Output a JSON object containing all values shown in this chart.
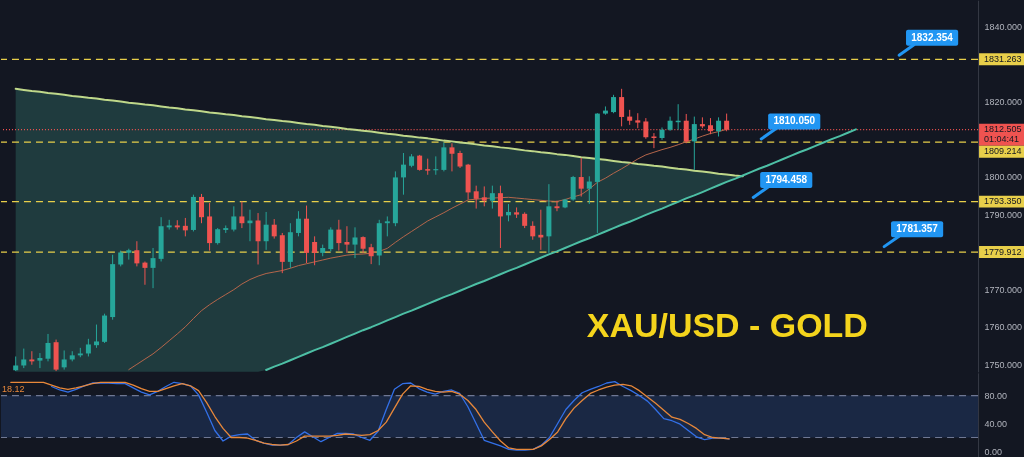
{
  "chart_data": [
    {
      "type": "candlestick",
      "title": "XAU/USD - GOLD",
      "categories": [
        null,
        null,
        null,
        null,
        null,
        null,
        null,
        null,
        null,
        null,
        null,
        null,
        null,
        null,
        null,
        null,
        null,
        null,
        null,
        null,
        null,
        null,
        null,
        null,
        null,
        null,
        null,
        null,
        null,
        null,
        null,
        null,
        null,
        null,
        null,
        null,
        null,
        null,
        null,
        null,
        null,
        null,
        null,
        null,
        null,
        null,
        null,
        null,
        null,
        null,
        null,
        null,
        null,
        null,
        null,
        null,
        null,
        null,
        null,
        null,
        null,
        null,
        null,
        null,
        null,
        null,
        null,
        null,
        null,
        null,
        null,
        null,
        null,
        null,
        null,
        null,
        null,
        null,
        null,
        null,
        null,
        null,
        null,
        null,
        null,
        null,
        null,
        null,
        null,
        null,
        null,
        null,
        null,
        null,
        null,
        null,
        null,
        null,
        null,
        null,
        null,
        null,
        null,
        null,
        null,
        null,
        null,
        null,
        null,
        null,
        null,
        null,
        null,
        null,
        null,
        null,
        null,
        null,
        null
      ],
      "ohlc": [
        [
          1748.4,
          1752.1,
          1748.2,
          1749.7
        ],
        [
          1749.7,
          1754.2,
          1749.0,
          1751.3
        ],
        [
          1751.3,
          1753.5,
          1749.9,
          1750.8
        ],
        [
          1751.0,
          1753.0,
          1749.0,
          1751.7
        ],
        [
          1751.5,
          1758.1,
          1750.8,
          1755.7
        ],
        [
          1755.9,
          1756.6,
          1748.2,
          1748.6
        ],
        [
          1749.2,
          1753.7,
          1748.6,
          1751.3
        ],
        [
          1751.3,
          1753.5,
          1750.8,
          1752.4
        ],
        [
          1752.4,
          1754.4,
          1751.9,
          1752.9
        ],
        [
          1752.9,
          1756.8,
          1752.1,
          1755.3
        ],
        [
          1755.1,
          1760.6,
          1754.4,
          1756.1
        ],
        [
          1756.0,
          1763.5,
          1755.7,
          1763.0
        ],
        [
          1762.6,
          1779.2,
          1761.9,
          1776.7
        ],
        [
          1776.6,
          1780.3,
          1776.1,
          1779.8
        ],
        [
          1779.7,
          1780.8,
          1777.9,
          1780.4
        ],
        [
          1780.4,
          1782.8,
          1776.1,
          1776.9
        ],
        [
          1777.1,
          1777.4,
          1771.2,
          1775.7
        ],
        [
          1775.7,
          1781.0,
          1770.3,
          1778.3
        ],
        [
          1778.1,
          1789.2,
          1777.4,
          1786.8
        ],
        [
          1786.5,
          1788.5,
          1785.9,
          1787.0
        ],
        [
          1787.0,
          1788.4,
          1785.9,
          1786.5
        ],
        [
          1786.9,
          1789.0,
          1784.1,
          1785.7
        ],
        [
          1785.8,
          1795.2,
          1785.4,
          1794.6
        ],
        [
          1794.6,
          1795.4,
          1787.6,
          1789.2
        ],
        [
          1789.4,
          1793.0,
          1780.3,
          1782.3
        ],
        [
          1782.3,
          1786.3,
          1781.9,
          1786.0
        ],
        [
          1785.8,
          1787.0,
          1785.0,
          1786.3
        ],
        [
          1785.9,
          1792.1,
          1785.4,
          1789.4
        ],
        [
          1789.4,
          1793.4,
          1786.3,
          1787.6
        ],
        [
          1787.6,
          1791.2,
          1782.8,
          1788.3
        ],
        [
          1788.3,
          1790.3,
          1776.6,
          1782.8
        ],
        [
          1782.8,
          1790.6,
          1780.5,
          1787.2
        ],
        [
          1787.2,
          1788.7,
          1783.5,
          1784.1
        ],
        [
          1784.4,
          1785.0,
          1774.3,
          1777.3
        ],
        [
          1777.3,
          1787.6,
          1775.7,
          1785.2
        ],
        [
          1785.0,
          1790.8,
          1784.1,
          1788.8
        ],
        [
          1788.8,
          1792.3,
          1777.0,
          1779.7
        ],
        [
          1782.6,
          1784.1,
          1776.4,
          1779.7
        ],
        [
          1779.7,
          1781.9,
          1778.8,
          1781.0
        ],
        [
          1780.7,
          1786.5,
          1780.1,
          1785.9
        ],
        [
          1785.9,
          1788.5,
          1780.3,
          1782.3
        ],
        [
          1782.6,
          1786.8,
          1779.7,
          1781.9
        ],
        [
          1781.9,
          1786.5,
          1778.3,
          1783.8
        ],
        [
          1783.9,
          1784.1,
          1779.7,
          1780.8
        ],
        [
          1781.2,
          1782.1,
          1776.7,
          1778.8
        ],
        [
          1779.0,
          1788.5,
          1776.4,
          1787.6
        ],
        [
          1787.6,
          1789.4,
          1784.1,
          1788.1
        ],
        [
          1787.6,
          1801.4,
          1786.8,
          1799.8
        ],
        [
          1799.8,
          1806.3,
          1795.2,
          1803.2
        ],
        [
          1802.9,
          1806.0,
          1802.5,
          1805.4
        ],
        [
          1805.6,
          1805.8,
          1801.6,
          1801.8
        ],
        [
          1802.0,
          1804.8,
          1800.5,
          1801.6
        ],
        [
          1801.7,
          1805.4,
          1800.5,
          1802.0
        ],
        [
          1801.8,
          1809.1,
          1801.4,
          1807.8
        ],
        [
          1807.8,
          1808.9,
          1801.4,
          1806.1
        ],
        [
          1806.3,
          1806.9,
          1802.3,
          1802.7
        ],
        [
          1803.2,
          1803.4,
          1793.9,
          1795.8
        ],
        [
          1796.1,
          1797.6,
          1791.5,
          1794.1
        ],
        [
          1794.5,
          1797.4,
          1792.1,
          1793.6
        ],
        [
          1793.6,
          1797.6,
          1791.5,
          1795.6
        ],
        [
          1795.6,
          1797.6,
          1781.0,
          1789.4
        ],
        [
          1789.7,
          1792.7,
          1788.1,
          1790.6
        ],
        [
          1790.5,
          1791.8,
          1789.0,
          1789.9
        ],
        [
          1790.1,
          1790.5,
          1786.3,
          1786.9
        ],
        [
          1786.9,
          1788.1,
          1783.2,
          1784.1
        ],
        [
          1784.5,
          1791.2,
          1780.5,
          1783.8
        ],
        [
          1784.1,
          1798.0,
          1779.7,
          1792.1
        ],
        [
          1792.1,
          1793.6,
          1790.8,
          1791.6
        ],
        [
          1791.8,
          1794.1,
          1791.6,
          1793.9
        ],
        [
          1793.9,
          1800.2,
          1793.6,
          1799.9
        ],
        [
          1799.9,
          1805.0,
          1794.7,
          1796.8
        ],
        [
          1796.8,
          1800.1,
          1792.7,
          1798.7
        ],
        [
          1798.6,
          1816.9,
          1785.0,
          1816.8
        ],
        [
          1816.8,
          1818.7,
          1816.5,
          1817.6
        ],
        [
          1817.2,
          1821.8,
          1816.9,
          1821.2
        ],
        [
          1821.2,
          1823.4,
          1813.4,
          1815.9
        ],
        [
          1816.0,
          1817.8,
          1813.8,
          1814.9
        ],
        [
          1815.0,
          1816.9,
          1812.9,
          1814.4
        ],
        [
          1814.7,
          1815.6,
          1810.1,
          1810.5
        ],
        [
          1810.7,
          1811.6,
          1807.6,
          1810.3
        ],
        [
          1810.3,
          1813.1,
          1809.8,
          1812.5
        ],
        [
          1812.5,
          1816.0,
          1812.2,
          1814.9
        ],
        [
          1814.5,
          1819.3,
          1812.5,
          1814.9
        ],
        [
          1814.9,
          1816.7,
          1808.9,
          1809.4
        ],
        [
          1809.4,
          1816.0,
          1801.8,
          1814.0
        ],
        [
          1814.0,
          1815.8,
          1812.9,
          1813.4
        ],
        [
          1813.7,
          1815.6,
          1811.3,
          1812.1
        ],
        [
          1812.1,
          1815.8,
          1810.7,
          1814.9
        ],
        [
          1814.9,
          1816.8,
          1812.1,
          1812.5
        ],
        null,
        null,
        null,
        null,
        null,
        null,
        null,
        null,
        null,
        null,
        null,
        null,
        null,
        null,
        null,
        null,
        null,
        null,
        null,
        null,
        null,
        null,
        null,
        null,
        null,
        null,
        null,
        null,
        null,
        null
      ],
      "colors": [
        "#26a69a",
        "#26a69a",
        "#ef5350",
        "#26a69a",
        "#26a69a",
        "#ef5350",
        "#26a69a",
        "#26a69a",
        "#26a69a",
        "#26a69a",
        "#26a69a",
        "#26a69a",
        "#26a69a",
        "#26a69a",
        "#26a69a",
        "#ef5350",
        "#ef5350",
        "#26a69a",
        "#26a69a",
        "#26a69a",
        "#ef5350",
        "#ef5350",
        "#26a69a",
        "#ef5350",
        "#ef5350",
        "#26a69a",
        "#26a69a",
        "#26a69a",
        "#ef5350",
        "#26a69a",
        "#ef5350",
        "#26a69a",
        "#ef5350",
        "#ef5350",
        "#26a69a",
        "#26a69a",
        "#ef5350",
        "#ef5350",
        "#26a69a",
        "#26a69a",
        "#ef5350",
        "#ef5350",
        "#26a69a",
        "#ef5350",
        "#ef5350",
        "#26a69a",
        "#26a69a",
        "#26a69a",
        "#26a69a",
        "#26a69a",
        "#ef5350",
        "#ef5350",
        "#26a69a",
        "#26a69a",
        "#ef5350",
        "#ef5350",
        "#ef5350",
        "#ef5350",
        "#ef5350",
        "#26a69a",
        "#ef5350",
        "#26a69a",
        "#ef5350",
        "#ef5350",
        "#ef5350",
        "#ef5350",
        "#26a69a",
        "#ef5350",
        "#26a69a",
        "#26a69a",
        "#ef5350",
        "#26a69a",
        "#26a69a",
        "#26a69a",
        "#26a69a",
        "#ef5350",
        "#ef5350",
        "#ef5350",
        "#ef5350",
        "#ef5350",
        "#26a69a",
        "#26a69a",
        "#26a69a",
        "#ef5350",
        "#26a69a",
        "#ef5350",
        "#ef5350",
        "#26a69a",
        "#ef5350",
        null,
        null,
        null,
        null,
        null,
        null,
        null,
        null,
        null,
        null,
        null,
        null,
        null,
        null,
        null,
        null,
        null,
        null,
        null,
        null,
        null,
        null,
        null,
        null,
        null,
        null,
        null,
        null,
        null,
        null
      ],
      "series": [
        {
          "type": "line",
          "color": "#bfd88a",
          "values": [
            1823.4,
            1823.1,
            1822.8,
            1822.6,
            1822.3,
            1822.1,
            1821.8,
            1821.5,
            1821.3,
            1821.0,
            1820.8,
            1820.5,
            1820.3,
            1820.0,
            1819.7,
            1819.5,
            1819.2,
            1819.0,
            1818.7,
            1818.4,
            1818.2,
            1817.9,
            1817.7,
            1817.4,
            1817.1,
            1816.9,
            1816.6,
            1816.4,
            1816.1,
            1815.9,
            1815.6,
            1815.3,
            1815.1,
            1814.8,
            1814.6,
            1814.3,
            1814.0,
            1813.8,
            1813.5,
            1813.3,
            1813.0,
            1812.7,
            1812.5,
            1812.2,
            1812.0,
            1811.7,
            1811.4,
            1811.2,
            1810.9,
            1810.7,
            1810.4,
            1810.2,
            1809.9,
            1809.6,
            1809.4,
            1809.1,
            1808.9,
            1808.6,
            1808.3,
            1808.1,
            1807.8,
            1807.6,
            1807.3,
            1807.0,
            1806.8,
            1806.5,
            1806.3,
            1806.0,
            1805.8,
            1805.5,
            1805.2,
            1805.0,
            1804.7,
            1804.5,
            1804.2,
            1803.9,
            1803.7,
            1803.4,
            1803.2,
            1802.9,
            1802.7,
            1802.4,
            1802.1,
            1801.9,
            1801.6,
            1801.4,
            1801.1,
            1800.8,
            1800.6,
            1800.3,
            1800.1,
            null,
            null,
            null,
            null,
            null,
            null,
            null,
            null,
            null,
            null,
            null,
            null,
            null,
            null,
            null,
            null,
            null,
            null,
            null,
            null,
            null,
            null,
            null,
            null,
            null,
            null,
            null,
            null
          ]
        },
        {
          "type": "line",
          "color": "#4dbfa5",
          "values": [
            null,
            null,
            null,
            null,
            null,
            null,
            null,
            null,
            null,
            null,
            null,
            null,
            null,
            null,
            null,
            null,
            null,
            null,
            null,
            null,
            null,
            null,
            null,
            null,
            null,
            null,
            null,
            null,
            null,
            null,
            null,
            1748.5,
            1749.4,
            1750.2,
            1751.1,
            1752.0,
            1752.9,
            1753.8,
            1754.6,
            1755.5,
            1756.4,
            1757.3,
            1758.2,
            1759.1,
            1759.9,
            1760.8,
            1761.7,
            1762.6,
            1763.5,
            1764.3,
            1765.2,
            1766.1,
            1767.0,
            1767.9,
            1768.7,
            1769.6,
            1770.5,
            1771.4,
            1772.2,
            1773.1,
            1774.0,
            1774.9,
            1775.7,
            1776.6,
            1777.5,
            1778.4,
            1779.3,
            1780.1,
            1781.0,
            1781.9,
            1782.8,
            1783.6,
            1784.5,
            1785.4,
            1786.3,
            1787.2,
            1788.0,
            1788.9,
            1789.8,
            1790.7,
            1791.5,
            1792.4,
            1793.3,
            1794.2,
            1795.0,
            1795.9,
            1796.8,
            1797.7,
            1798.6,
            1799.4,
            1800.3,
            1801.2,
            1802.1,
            1802.9,
            1803.8,
            1804.7,
            1805.6,
            1806.5,
            1807.3,
            1808.2,
            1809.1,
            1810.0,
            1810.8,
            1811.7,
            1812.6,
            null,
            null,
            null,
            null,
            null,
            null,
            null,
            null,
            null,
            null,
            null,
            null,
            null,
            null
          ],
          "upper": [
            1823.4,
            1823.1,
            1822.8,
            1822.6,
            1822.3,
            1822.1,
            1821.8,
            1821.5,
            1821.3,
            1821.0,
            1820.8,
            1820.5,
            1820.3,
            1820.0,
            1819.7,
            1819.5,
            1819.2,
            1819.0,
            1818.7,
            1818.4,
            1818.2,
            1817.9,
            1817.7,
            1817.4,
            1817.1,
            1816.9,
            1816.6,
            1816.4,
            1816.1,
            1815.9,
            1815.6,
            1815.3,
            1815.1,
            1814.8,
            1814.6,
            1814.3,
            1814.0,
            1813.8,
            1813.5,
            1813.3,
            1813.0,
            1812.7,
            1812.5,
            1812.2,
            1812.0,
            1811.7,
            1811.4,
            1811.2,
            1810.9,
            1810.7,
            1810.4,
            1810.2,
            1809.9,
            1809.6,
            1809.4,
            1809.1,
            1808.9,
            1808.6,
            1808.3,
            1808.1,
            1807.8,
            1807.6,
            1807.3,
            1807.0,
            1806.8,
            1806.5,
            1806.3,
            1806.0,
            1805.8,
            1805.5,
            1805.2,
            1805.0,
            1804.7,
            1804.5,
            1804.2,
            1803.9,
            1803.7,
            1803.4,
            1803.2,
            1802.9,
            1802.7,
            1802.4,
            1802.1,
            1801.9,
            1801.6,
            1801.4,
            1801.1,
            1800.8,
            1800.6,
            1800.3,
            null,
            null,
            null,
            null,
            null,
            null,
            null,
            null,
            null,
            null,
            null,
            null,
            null,
            null,
            null,
            null,
            null,
            null,
            null,
            null,
            null,
            null,
            null,
            null,
            null,
            null,
            null,
            null,
            null
          ],
          "lower": [
            1748.0,
            1748.0,
            1748.0,
            1748.0,
            1748.0,
            1748.0,
            1748.0,
            1748.0,
            1748.0,
            1748.0,
            1748.0,
            1748.0,
            1748.0,
            1748.0,
            1748.0,
            1748.0,
            1748.0,
            1748.0,
            1748.0,
            1748.0,
            1748.0,
            1748.0,
            1748.0,
            1748.0,
            1748.0,
            1748.0,
            1748.0,
            1748.0,
            1748.0,
            1748.0,
            1748.0,
            1748.5,
            1749.4,
            1750.2,
            1751.1,
            1752.0,
            1752.9,
            1753.8,
            1754.6,
            1755.5,
            1756.4,
            1757.3,
            1758.2,
            1759.1,
            1759.9,
            1760.8,
            1761.7,
            1762.6,
            1763.5,
            1764.3,
            1765.2,
            1766.1,
            1767.0,
            1767.9,
            1768.7,
            1769.6,
            1770.5,
            1771.4,
            1772.2,
            1773.1,
            1774.0,
            1774.9,
            1775.7,
            1776.6,
            1777.5,
            1778.4,
            1779.3,
            1780.1,
            1781.0,
            1781.9,
            1782.8,
            1783.6,
            1784.5,
            1785.4,
            1786.3,
            1787.2,
            1788.0,
            1788.9,
            1789.8,
            1790.7,
            1791.5,
            1792.4,
            1793.3,
            1794.2,
            1795.0,
            1795.9,
            1796.8,
            1797.7,
            1798.6,
            1799.4,
            null,
            null,
            null,
            null,
            null,
            null,
            null,
            null,
            null,
            null,
            null,
            null,
            null,
            null,
            null,
            null,
            null,
            null,
            null,
            null,
            null,
            null,
            null,
            null,
            null,
            null,
            null,
            null,
            null
          ]
        },
        {
          "type": "line",
          "color": "#b5654a",
          "values": [
            null,
            null,
            null,
            null,
            null,
            null,
            null,
            null,
            null,
            null,
            null,
            null,
            null,
            null,
            1748.6,
            1750.0,
            1751.4,
            1752.8,
            1754.5,
            1756.3,
            1758.1,
            1760.0,
            1762.2,
            1764.3,
            1765.9,
            1767.3,
            1768.6,
            1769.9,
            1771.4,
            1772.6,
            1773.5,
            1774.2,
            1774.6,
            1775.0,
            1775.6,
            1776.3,
            1776.8,
            1777.3,
            1777.8,
            1778.3,
            1778.7,
            1779.1,
            1779.3,
            1779.4,
            1779.6,
            1780.1,
            1780.9,
            1782.5,
            1784.0,
            1785.4,
            1786.8,
            1788.2,
            1789.3,
            1790.4,
            1791.6,
            1792.7,
            1793.8,
            1794.0,
            1794.2,
            1794.3,
            1794.4,
            1794.5,
            1794.3,
            1794.1,
            1793.9,
            1793.7,
            1793.5,
            1793.4,
            1793.9,
            1794.6,
            1795.2,
            1796.7,
            1798.5,
            1799.6,
            1800.9,
            1802.1,
            1803.4,
            1804.7,
            1805.8,
            1806.5,
            1807.2,
            1807.8,
            1808.5,
            1809.3,
            1810.0,
            1810.8,
            1811.5,
            1812.0,
            1812.6,
            null,
            null,
            null,
            null,
            null,
            null,
            null,
            null,
            null,
            null,
            null,
            null,
            null,
            null,
            null,
            null,
            null,
            null,
            null,
            null,
            null,
            null,
            null,
            null,
            null,
            null,
            null,
            null,
            null,
            null
          ]
        }
      ],
      "ylim": [
        1748,
        1847
      ],
      "yticks": [
        {
          "value": 1840,
          "label": "1840.000"
        },
        {
          "value": 1820,
          "label": "1820.000"
        },
        {
          "value": 1800,
          "label": "1800.000"
        },
        {
          "value": 1790,
          "label": "1790.000"
        },
        {
          "value": 1770,
          "label": "1770.000"
        },
        {
          "value": 1760,
          "label": "1760.000"
        },
        {
          "value": 1750,
          "label": "1750.000"
        }
      ],
      "ref_lines": [
        {
          "axis": "y",
          "value": 1831.263,
          "label": "1831.263",
          "color": "#e8cf4a",
          "line_style": "dashed"
        },
        {
          "axis": "y",
          "value": 1809.214,
          "label": "1809.214",
          "color": "#e8cf4a",
          "line_style": "dashed"
        },
        {
          "axis": "y",
          "value": 1793.35,
          "label": "1793.350",
          "color": "#e8cf4a",
          "line_style": "dashed"
        },
        {
          "axis": "y",
          "value": 1779.912,
          "label": "1779.912",
          "color": "#e8cf4a",
          "line_style": "dashed"
        },
        {
          "axis": "y",
          "value": 1812.505,
          "label": "1812.505\n01:04:41",
          "color": "#ef5350",
          "line_style": "dotted"
        }
      ],
      "annotations": [
        {
          "text": "1832.354",
          "y": 1832.354
        },
        {
          "text": "1810.050",
          "y": 1810.05
        },
        {
          "text": "1794.458",
          "y": 1794.458
        },
        {
          "text": "1781.357",
          "y": 1781.357
        }
      ],
      "tick_labels": "y"
    },
    {
      "type": "line",
      "categories": [
        null,
        null,
        null,
        null,
        null,
        null,
        null,
        null,
        null,
        null,
        null,
        null,
        null,
        null,
        null,
        null,
        null,
        null,
        null,
        null,
        null,
        null,
        null,
        null,
        null,
        null,
        null,
        null,
        null,
        null,
        null,
        null,
        null,
        null,
        null,
        null,
        null,
        null,
        null,
        null,
        null,
        null,
        null,
        null,
        null,
        null,
        null,
        null,
        null,
        null,
        null,
        null,
        null,
        null,
        null,
        null,
        null,
        null,
        null,
        null,
        null,
        null,
        null,
        null,
        null,
        null,
        null,
        null,
        null,
        null,
        null,
        null,
        null,
        null,
        null,
        null,
        null,
        null,
        null,
        null,
        null,
        null,
        null,
        null,
        null,
        null,
        null,
        null,
        null,
        null,
        null,
        null,
        null,
        null,
        null,
        null,
        null,
        null,
        null,
        null,
        null,
        null,
        null,
        null,
        null,
        null,
        null,
        null,
        null,
        null,
        null,
        null,
        null,
        null,
        null,
        null,
        null,
        null,
        null
      ],
      "series": [
        {
          "color": "#3370e8",
          "values": [
            null,
            null,
            null,
            null,
            null,
            93,
            88,
            85,
            89,
            94,
            98,
            98,
            98,
            97,
            97,
            91,
            85,
            81,
            86,
            93,
            99,
            97,
            94,
            81,
            56,
            30,
            15,
            22,
            24,
            25,
            16,
            12,
            9,
            9,
            10,
            20,
            28,
            21,
            14,
            20,
            26,
            26,
            25,
            20,
            16,
            29,
            60,
            89,
            97,
            98,
            90,
            85,
            82,
            86,
            88,
            83,
            64,
            40,
            16,
            12,
            8,
            3,
            2,
            2,
            3,
            9,
            20,
            40,
            60,
            73,
            84,
            89,
            93,
            98,
            100,
            93,
            87,
            80,
            72,
            60,
            47,
            44,
            39,
            30,
            21,
            17,
            19,
            19,
            18,
            null,
            null,
            null,
            null,
            null,
            null,
            null,
            null,
            null,
            null,
            null,
            null,
            null,
            null,
            null,
            null,
            null,
            null,
            null,
            null,
            null,
            null,
            null,
            null,
            null,
            null,
            null,
            null,
            null,
            null
          ]
        },
        {
          "color": "#e8883a",
          "values": [
            99,
            99,
            99,
            99,
            99,
            95,
            91,
            89,
            91,
            94,
            97,
            99,
            99,
            99,
            99,
            95,
            90,
            86,
            86,
            90,
            94,
            97,
            94,
            87,
            70,
            50,
            33,
            20,
            20,
            19,
            16,
            12,
            10,
            9,
            10,
            15,
            22,
            22,
            22,
            22,
            23,
            25,
            24,
            23,
            24,
            30,
            42,
            62,
            82,
            94,
            93,
            89,
            86,
            85,
            86,
            82,
            73,
            60,
            42,
            28,
            15,
            5,
            3,
            3,
            3,
            8,
            17,
            28,
            47,
            62,
            73,
            83,
            88,
            92,
            95,
            96,
            94,
            87,
            78,
            69,
            59,
            49,
            46,
            40,
            33,
            24,
            20,
            19,
            18,
            null,
            null,
            null,
            null,
            null,
            null,
            null,
            null,
            null,
            null,
            null,
            null,
            null,
            null,
            null,
            null,
            null,
            null,
            null,
            null,
            null,
            null,
            null,
            null,
            null,
            null,
            null,
            null,
            null,
            null
          ]
        }
      ],
      "ylim": [
        -7.6,
        112.5
      ],
      "yticks": [
        {
          "value": 80,
          "label": "80.00"
        },
        {
          "value": 40,
          "label": "40.00"
        },
        {
          "value": 0,
          "label": "0.00"
        }
      ],
      "bands": [
        {
          "axis": "y",
          "from": 20,
          "to": 80,
          "color": "#1a2844"
        }
      ],
      "ref_lines": [
        {
          "axis": "y",
          "value": 80,
          "color": "#6f7894",
          "line_style": "dashed"
        },
        {
          "axis": "y",
          "value": 20,
          "color": "#6f7894",
          "line_style": "dashed"
        }
      ],
      "annotations": [
        "18.12"
      ],
      "tick_labels": "y"
    }
  ]
}
